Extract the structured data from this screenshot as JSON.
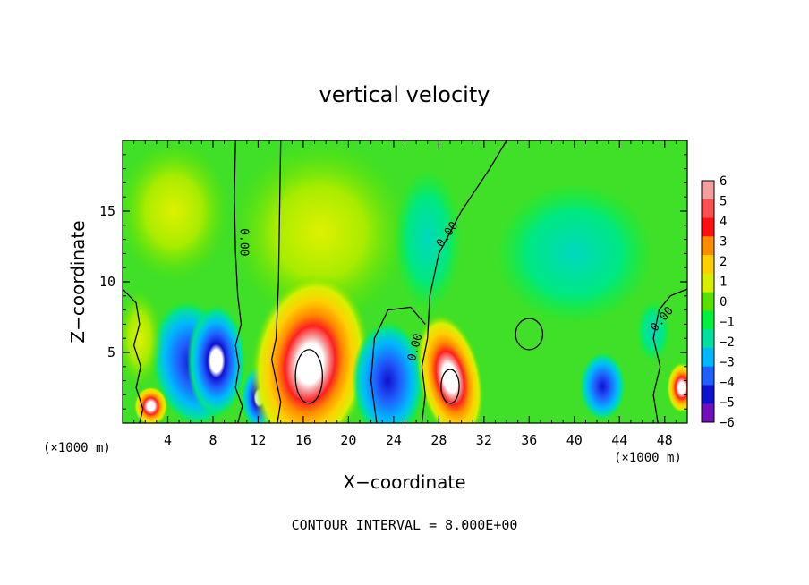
{
  "chart_data": {
    "type": "heatmap",
    "title": "vertical velocity",
    "xlabel": "X−coordinate",
    "ylabel": "Z−coordinate",
    "x_unit_left": "(×1000 m)",
    "x_unit_right": "(×1000 m)",
    "xlim": [
      0,
      50
    ],
    "ylim": [
      0,
      20
    ],
    "xticks": [
      4,
      8,
      12,
      16,
      20,
      24,
      28,
      32,
      36,
      40,
      44,
      48
    ],
    "yticks": [
      5,
      10,
      15
    ],
    "colorbar": {
      "levels": [
        "6",
        "5",
        "4",
        "3",
        "2",
        "1",
        "0",
        "−1",
        "−2",
        "−3",
        "−4",
        "−5",
        "−6"
      ],
      "colors": [
        "#f4a0a0",
        "#ff5050",
        "#ff1010",
        "#ff8c00",
        "#ffd000",
        "#d8f000",
        "#58e000",
        "#00f040",
        "#00e0a0",
        "#00b8ff",
        "#2060ff",
        "#1010d0",
        "#7010b8"
      ]
    },
    "contour_label": "0.00",
    "footer": "CONTOUR INTERVAL = 8.000E+00",
    "features": [
      {
        "x": 8.3,
        "z": 4.5,
        "w": -6
      },
      {
        "x": 12.1,
        "z": 1.6,
        "w": -5
      },
      {
        "x": 5.5,
        "z": 3.0,
        "w": -4
      },
      {
        "x": 16.5,
        "z": 5.0,
        "w": 6
      },
      {
        "x": 29.0,
        "z": 3.2,
        "w": 6
      },
      {
        "x": 23.5,
        "z": 3.0,
        "w": -5
      },
      {
        "x": 42.5,
        "z": 2.5,
        "w": -4
      },
      {
        "x": 47.0,
        "z": 6.5,
        "w": -2
      },
      {
        "x": 17.5,
        "z": 14.0,
        "w": 1
      }
    ]
  }
}
